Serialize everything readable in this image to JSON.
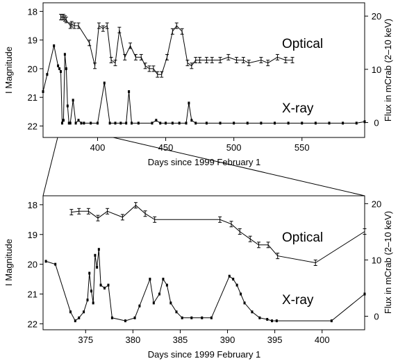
{
  "chart_data": [
    {
      "type": "line",
      "xlabel": "Days since 1999 February 1",
      "ylabel_left": "I Magnitude",
      "ylabel_right": "Flux in mCrab (2–10 keV)",
      "xlim": [
        360,
        596
      ],
      "ylim_left": [
        22.4,
        17.7
      ],
      "ylim_right": [
        -2.8,
        22.5
      ],
      "x_ticks": [
        400,
        450,
        500,
        550
      ],
      "y_ticks_left": [
        18,
        19,
        20,
        21,
        22
      ],
      "y_ticks_right": [
        0,
        10,
        20
      ],
      "annotations": [
        "Optical",
        "X-ray"
      ],
      "series": [
        {
          "name": "Optical",
          "axis": "left",
          "error_bars": true,
          "x": [
            373,
            374,
            375,
            376,
            377,
            380,
            381,
            383,
            386,
            394,
            398,
            401,
            404,
            407,
            410,
            413,
            416,
            420,
            424,
            428,
            432,
            435,
            438,
            441,
            444,
            447,
            451,
            455,
            458,
            462,
            466,
            469,
            472,
            475,
            480,
            484,
            490,
            496,
            502,
            507,
            511,
            520,
            525,
            532,
            538,
            543
          ],
          "y": [
            18.2,
            18.2,
            18.2,
            18.25,
            18.3,
            18.5,
            18.45,
            18.5,
            18.5,
            19.1,
            19.9,
            18.5,
            18.6,
            18.5,
            19.7,
            19.8,
            18.65,
            19.6,
            19.2,
            19.6,
            19.6,
            19.9,
            20.0,
            20.0,
            20.2,
            20.2,
            19.6,
            18.7,
            18.5,
            18.7,
            19.8,
            19.9,
            19.7,
            19.7,
            19.7,
            19.7,
            19.7,
            19.6,
            19.7,
            19.7,
            19.8,
            19.7,
            19.8,
            19.6,
            19.7,
            19.7
          ]
        },
        {
          "name": "X-ray",
          "axis": "left",
          "x": [
            360,
            363,
            368,
            371,
            372,
            373,
            374,
            375,
            376,
            377,
            378,
            379,
            380,
            382,
            384,
            386,
            388,
            390,
            395,
            400,
            405,
            409,
            413,
            417,
            421,
            423,
            425,
            430,
            440,
            443,
            446,
            450,
            455,
            460,
            465,
            467,
            469,
            472,
            480,
            490,
            500,
            510,
            520,
            530,
            540,
            550,
            560,
            570,
            580,
            590,
            596
          ],
          "y": [
            20.8,
            20.2,
            19.2,
            19.9,
            20.0,
            20.1,
            21.9,
            21.8,
            19.5,
            20.0,
            21.3,
            21.9,
            21.9,
            21.1,
            21.9,
            21.8,
            21.9,
            21.9,
            21.9,
            21.9,
            20.5,
            21.9,
            21.9,
            21.9,
            21.9,
            20.8,
            21.9,
            21.9,
            21.9,
            21.8,
            21.9,
            21.9,
            21.9,
            21.9,
            21.9,
            21.2,
            21.8,
            21.9,
            21.9,
            21.9,
            21.9,
            21.9,
            21.9,
            21.9,
            21.9,
            21.9,
            21.9,
            21.9,
            21.9,
            21.9,
            21.85
          ]
        }
      ]
    },
    {
      "type": "line",
      "xlabel": "Days since 1999 February 1",
      "ylabel_left": "I Magnitude",
      "ylabel_right": "Flux in mCrab (2–10 keV)",
      "xlim": [
        370.5,
        404.5
      ],
      "ylim_left": [
        22.2,
        17.7
      ],
      "ylim_right": [
        -2.4,
        21.4
      ],
      "x_ticks": [
        375,
        380,
        385,
        390,
        395,
        400
      ],
      "y_ticks_left": [
        18,
        19,
        20,
        21,
        22
      ],
      "y_ticks_right": [
        0,
        10,
        20
      ],
      "annotations": [
        "Optical",
        "X-ray"
      ],
      "series": [
        {
          "name": "Optical",
          "axis": "left",
          "error_bars": true,
          "x": [
            373.5,
            374.3,
            375.3,
            376.3,
            377.3,
            378.9,
            380.3,
            381.3,
            382.3,
            389.2,
            390.4,
            391.3,
            392.4,
            393.3,
            394.3,
            395.3,
            399.3,
            404.5
          ],
          "y": [
            18.25,
            18.22,
            18.22,
            18.45,
            18.22,
            18.42,
            18.02,
            18.3,
            18.5,
            18.5,
            18.65,
            18.9,
            19.15,
            19.35,
            19.35,
            19.72,
            19.95,
            18.9
          ]
        },
        {
          "name": "X-ray",
          "axis": "left",
          "x": [
            370.8,
            371.8,
            373.4,
            373.9,
            374.3,
            374.8,
            375.2,
            375.4,
            375.6,
            375.8,
            376.0,
            376.2,
            376.4,
            376.6,
            377.0,
            377.4,
            377.8,
            379.2,
            380.2,
            380.7,
            381.8,
            382.2,
            382.8,
            383.2,
            383.6,
            384.0,
            384.6,
            385.2,
            386.2,
            387.3,
            388.3,
            390.2,
            390.6,
            391.0,
            391.4,
            391.8,
            392.6,
            393.4,
            394.2,
            394.7,
            395.2,
            401.0,
            404.5
          ],
          "y": [
            19.9,
            20.0,
            21.6,
            21.9,
            21.8,
            21.6,
            21.2,
            20.3,
            20.9,
            21.3,
            19.7,
            20.1,
            19.5,
            20.7,
            20.8,
            20.7,
            21.8,
            21.9,
            21.8,
            21.4,
            20.5,
            21.3,
            21.0,
            20.5,
            20.7,
            21.3,
            21.6,
            21.8,
            21.8,
            21.8,
            21.8,
            20.4,
            20.5,
            20.7,
            21.0,
            21.3,
            21.6,
            21.8,
            21.85,
            21.9,
            21.9,
            21.9,
            21.0
          ]
        }
      ]
    }
  ]
}
